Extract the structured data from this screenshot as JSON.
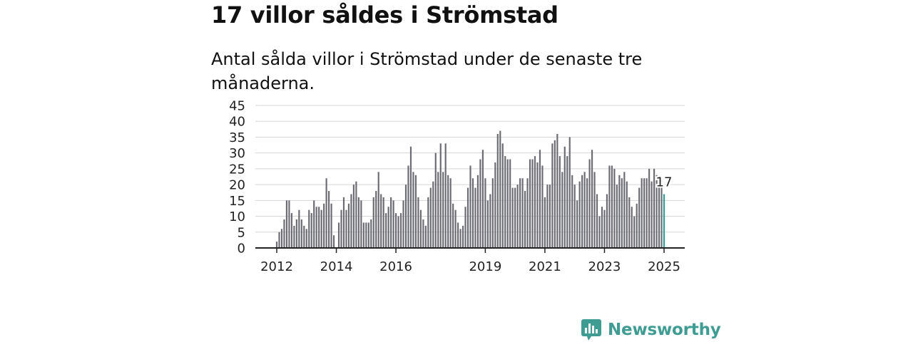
{
  "title": "17 villor såldes i Strömstad",
  "subtitle": "Antal sålda villor i Strömstad under de senaste tre månaderna.",
  "brand": {
    "name": "Newsworthy",
    "icon": "bar-chart-icon",
    "color": "#3f9c93"
  },
  "chart_data": {
    "type": "bar",
    "title": "17 villor såldes i Strömstad",
    "subtitle": "Antal sålda villor i Strömstad under de senaste tre månaderna.",
    "ylim": [
      0,
      45
    ],
    "yticks": [
      0,
      5,
      10,
      15,
      20,
      25,
      30,
      35,
      40,
      45
    ],
    "xticks": [
      "2012",
      "2014",
      "2016",
      "2019",
      "2021",
      "2023",
      "2025"
    ],
    "grid": true,
    "bar_color": "#6b6b73",
    "highlight_color": "#2aa198",
    "last_value_label": "17",
    "start": "2012-01",
    "end": "2025-01",
    "values": [
      2,
      5,
      6,
      9,
      15,
      15,
      11,
      7,
      9,
      12,
      9,
      7,
      6,
      12,
      11,
      15,
      13,
      13,
      12,
      14,
      22,
      18,
      14,
      4,
      0,
      8,
      12,
      16,
      12,
      14,
      17,
      20,
      21,
      16,
      15,
      8,
      8,
      8,
      9,
      16,
      18,
      24,
      17,
      16,
      11,
      13,
      16,
      15,
      11,
      10,
      11,
      15,
      20,
      26,
      32,
      24,
      23,
      16,
      12,
      9,
      7,
      16,
      19,
      21,
      30,
      24,
      33,
      24,
      33,
      23,
      22,
      14,
      12,
      8,
      6,
      7,
      13,
      19,
      26,
      22,
      19,
      23,
      28,
      31,
      22,
      15,
      17,
      22,
      27,
      36,
      37,
      33,
      29,
      28,
      28,
      19,
      19,
      20,
      22,
      22,
      18,
      22,
      28,
      28,
      29,
      27,
      31,
      26,
      16,
      20,
      20,
      33,
      34,
      36,
      29,
      24,
      32,
      29,
      35,
      23,
      20,
      15,
      21,
      23,
      24,
      22,
      28,
      31,
      24,
      17,
      10,
      13,
      12,
      17,
      26,
      26,
      25,
      20,
      23,
      22,
      24,
      21,
      16,
      13,
      10,
      14,
      19,
      22,
      22,
      22,
      25,
      21,
      25,
      23,
      22,
      19,
      17
    ]
  }
}
